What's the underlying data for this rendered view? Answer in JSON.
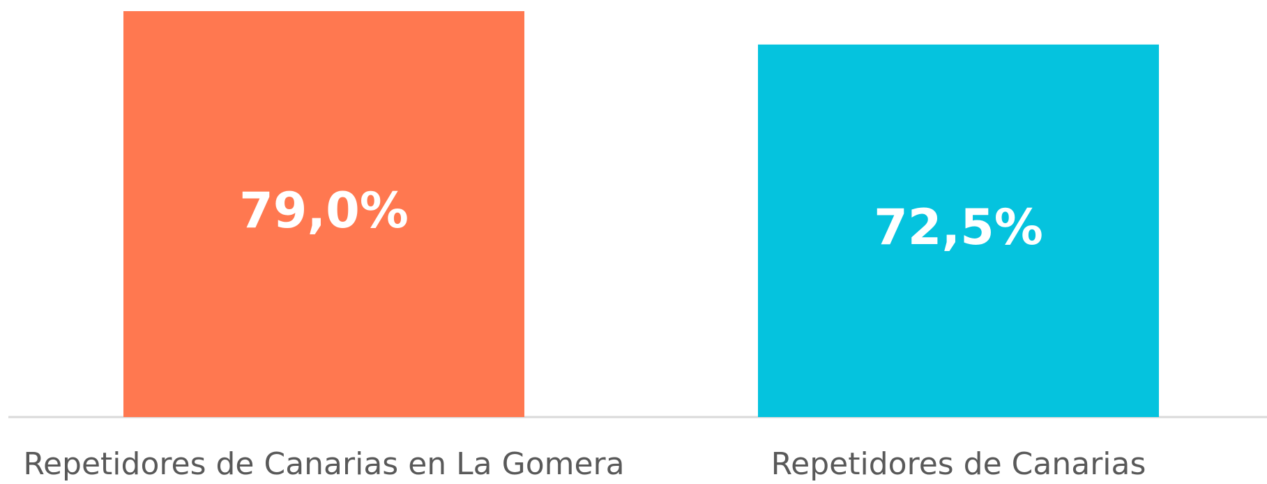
{
  "chart_data": {
    "type": "bar",
    "categories": [
      "Repetidores de Canarias en La Gomera",
      "Repetidores de Canarias"
    ],
    "values": [
      79.0,
      72.5
    ],
    "value_labels": [
      "79,0%",
      "72,5%"
    ],
    "colors": [
      "#ff7850",
      "#05c3de"
    ],
    "ylim": [
      0,
      80
    ]
  }
}
